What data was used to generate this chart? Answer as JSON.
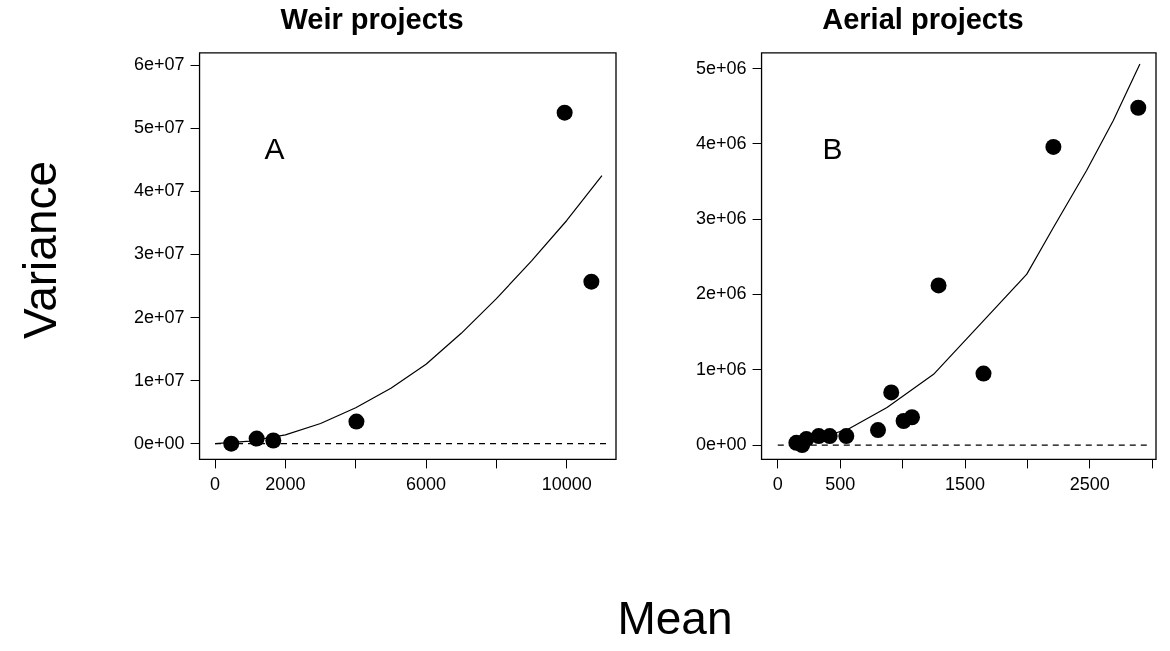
{
  "chart_data": [
    {
      "type": "scatter",
      "title": "Weir projects",
      "xlabel": "Mean",
      "ylabel": "Variance",
      "annotations": [
        "A"
      ],
      "grid": false,
      "legend": false,
      "xlim": [
        -440,
        11400
      ],
      "xticks": [
        0,
        2000,
        {
          "value": 4000,
          "label": null
        },
        6000,
        {
          "value": 8000,
          "label": null
        },
        10000
      ],
      "ylim": [
        -2500000,
        62000000
      ],
      "yticks": [
        {
          "value": 0,
          "label": "0e+00"
        },
        {
          "value": 10000000,
          "label": "1e+07"
        },
        {
          "value": 20000000,
          "label": "2e+07"
        },
        {
          "value": 30000000,
          "label": "3e+07"
        },
        {
          "value": 40000000,
          "label": "4e+07"
        },
        {
          "value": 50000000,
          "label": "5e+07"
        },
        {
          "value": 60000000,
          "label": "6e+07"
        }
      ],
      "ref_lines": [
        {
          "axis": "y",
          "value": 0,
          "color": "#000000",
          "line_style": "dashed"
        }
      ],
      "series": [
        {
          "type": "scatter",
          "color": "#000000",
          "marker": "circle",
          "x": [
            461,
            1183,
            1657,
            4020,
            9940,
            10700
          ],
          "values": [
            0,
            800000,
            500000,
            3500000,
            52500000,
            25700000
          ]
        },
        {
          "type": "line",
          "color": "#000000",
          "marker": "none",
          "line_style": "solid",
          "x": [
            0,
            1000,
            2000,
            3000,
            4000,
            5000,
            6000,
            7000,
            8000,
            9000,
            10000,
            11000
          ],
          "values": [
            0,
            400000,
            1400000,
            3200000,
            5700000,
            8800000,
            12600000,
            17500000,
            23000000,
            29000000,
            35400000,
            42500000
          ]
        }
      ]
    },
    {
      "type": "scatter",
      "title": "Aerial projects",
      "annotations": [
        "B"
      ],
      "grid": false,
      "legend": false,
      "xlim": [
        -130,
        3030
      ],
      "xticks": [
        0,
        500,
        {
          "value": 1000,
          "label": null
        },
        1500,
        {
          "value": 2000,
          "label": null
        },
        2500,
        {
          "value": 3000,
          "label": null
        }
      ],
      "ylim": [
        -190000,
        5210000
      ],
      "yticks": [
        {
          "value": 0,
          "label": "0e+00"
        },
        {
          "value": 1000000,
          "label": "1e+06"
        },
        {
          "value": 2000000,
          "label": "2e+06"
        },
        {
          "value": 3000000,
          "label": "3e+06"
        },
        {
          "value": 4000000,
          "label": "4e+06"
        },
        {
          "value": 5000000,
          "label": "5e+06"
        }
      ],
      "ref_lines": [
        {
          "axis": "y",
          "value": 0,
          "color": "#000000",
          "line_style": "dashed"
        }
      ],
      "series": [
        {
          "type": "scatter",
          "color": "#000000",
          "marker": "circle",
          "x": [
            149,
            195,
            229,
            328,
            416,
            549,
            803,
            909,
            1008,
            1075,
            1288,
            1648,
            2208,
            2888
          ],
          "values": [
            30000,
            0,
            80000,
            120000,
            120000,
            120000,
            200000,
            700000,
            320000,
            370000,
            2120000,
            950000,
            3960000,
            4480000
          ]
        },
        {
          "type": "line",
          "color": "#000000",
          "marker": "none",
          "line_style": "solid",
          "x": [
            150,
            563,
            875,
            1248,
            1675,
            1995,
            2208,
            2475,
            2688,
            2901
          ],
          "values": [
            10000,
            210000,
            500000,
            940000,
            1700000,
            2270000,
            2890000,
            3650000,
            4310000,
            5060000
          ]
        }
      ]
    }
  ]
}
